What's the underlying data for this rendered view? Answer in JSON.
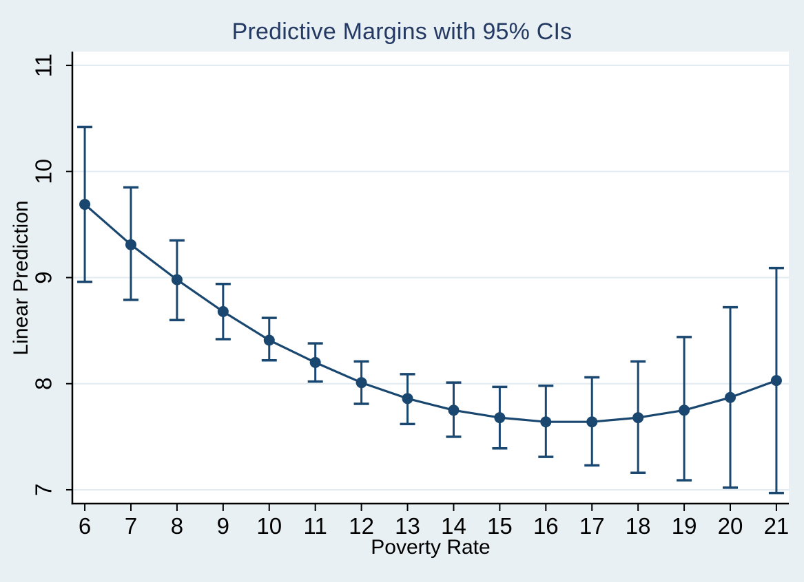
{
  "figure": {
    "title": "Predictive Margins with 95% CIs"
  },
  "chart_data": {
    "type": "line",
    "title": "Predictive Margins with 95% CIs",
    "xlabel": "Poverty Rate",
    "ylabel": "Linear Prediction",
    "x": [
      6,
      7,
      8,
      9,
      10,
      11,
      12,
      13,
      14,
      15,
      16,
      17,
      18,
      19,
      20,
      21
    ],
    "series": [
      {
        "name": "Predictive margin (95% CI)",
        "values": [
          9.69,
          9.31,
          8.98,
          8.68,
          8.41,
          8.2,
          8.01,
          7.86,
          7.75,
          7.68,
          7.64,
          7.64,
          7.68,
          7.75,
          7.87,
          8.03
        ],
        "ci_low": [
          8.96,
          8.79,
          8.6,
          8.42,
          8.22,
          8.02,
          7.81,
          7.62,
          7.5,
          7.39,
          7.31,
          7.23,
          7.16,
          7.09,
          7.02,
          6.97
        ],
        "ci_high": [
          10.42,
          9.85,
          9.35,
          8.94,
          8.62,
          8.38,
          8.21,
          8.09,
          8.01,
          7.97,
          7.98,
          8.06,
          8.21,
          8.44,
          8.72,
          9.09
        ]
      }
    ],
    "xticks": [
      6,
      7,
      8,
      9,
      10,
      11,
      12,
      13,
      14,
      15,
      16,
      17,
      18,
      19,
      20,
      21
    ],
    "yticks": [
      7,
      8,
      9,
      10,
      11
    ],
    "xlim": [
      5.73,
      21.27
    ],
    "ylim": [
      6.87,
      11.13
    ],
    "grid": true,
    "legend_position": "none",
    "colors": {
      "series": "#1a476f",
      "title": "#243a63",
      "grid": "#e2ebf2",
      "axis": "#000000",
      "tick_label": "#000000",
      "plot_background": "#ffffff",
      "page_background": "#e9f0f3"
    }
  }
}
